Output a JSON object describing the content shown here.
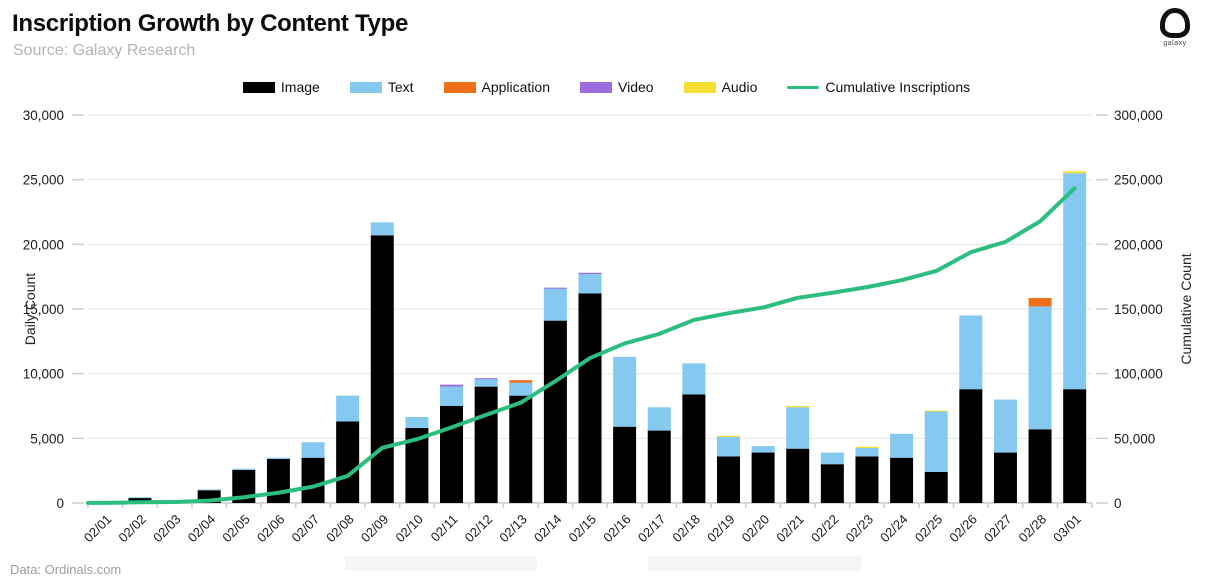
{
  "header": {
    "title": "Inscription Growth by Content Type",
    "subtitle": "Source: Galaxy Research",
    "logo_text": "galaxy"
  },
  "footer": {
    "data_source": "Data: Ordinals.com"
  },
  "chart_data": {
    "type": "bar",
    "stacked": true,
    "title": "Inscription Growth by Content Type",
    "grid": true,
    "legend_position": "top",
    "categories": [
      "02/01",
      "02/02",
      "02/03",
      "02/04",
      "02/05",
      "02/06",
      "02/07",
      "02/08",
      "02/09",
      "02/10",
      "02/11",
      "02/12",
      "02/13",
      "02/14",
      "02/15",
      "02/16",
      "02/17",
      "02/18",
      "02/19",
      "02/20",
      "02/21",
      "02/22",
      "02/23",
      "02/24",
      "02/25",
      "02/26",
      "02/27",
      "02/28",
      "03/01"
    ],
    "series": [
      {
        "name": "Image",
        "color": "#000000",
        "values": [
          100,
          400,
          200,
          1000,
          2550,
          3400,
          3500,
          6300,
          20700,
          5800,
          7500,
          9000,
          8300,
          14100,
          16200,
          5900,
          5600,
          8400,
          3600,
          3900,
          4200,
          3000,
          3600,
          3500,
          2400,
          8800,
          3900,
          5700,
          8800
        ]
      },
      {
        "name": "Text",
        "color": "#85C8F0",
        "values": [
          0,
          50,
          0,
          50,
          100,
          100,
          1200,
          2000,
          1000,
          850,
          1500,
          600,
          1000,
          2500,
          1500,
          5400,
          1800,
          2400,
          1500,
          500,
          3200,
          900,
          650,
          1850,
          4700,
          5700,
          4100,
          9500,
          16700
        ]
      },
      {
        "name": "Application",
        "color": "#F0701A",
        "values": [
          0,
          0,
          0,
          0,
          0,
          0,
          0,
          0,
          0,
          0,
          0,
          0,
          200,
          0,
          0,
          0,
          0,
          0,
          0,
          0,
          0,
          0,
          0,
          0,
          0,
          0,
          0,
          650,
          0
        ]
      },
      {
        "name": "Video",
        "color": "#9B6CE0",
        "values": [
          0,
          0,
          0,
          0,
          0,
          0,
          0,
          0,
          0,
          0,
          150,
          50,
          0,
          50,
          100,
          0,
          0,
          0,
          0,
          0,
          0,
          0,
          0,
          0,
          0,
          0,
          0,
          0,
          0
        ]
      },
      {
        "name": "Audio",
        "color": "#F5DF33",
        "values": [
          0,
          0,
          0,
          0,
          0,
          0,
          0,
          0,
          0,
          0,
          0,
          0,
          0,
          0,
          0,
          0,
          0,
          0,
          100,
          0,
          100,
          0,
          100,
          0,
          50,
          0,
          0,
          0,
          150
        ]
      }
    ],
    "line_series": {
      "name": "Cumulative Inscriptions",
      "color": "#2BBE7E",
      "axis": "right",
      "values": [
        100,
        550,
        750,
        1800,
        4450,
        7950,
        12650,
        20950,
        42650,
        49300,
        58450,
        68100,
        77600,
        94250,
        112050,
        123350,
        130750,
        141550,
        146750,
        151150,
        158650,
        162550,
        166900,
        172250,
        179400,
        193900,
        201900,
        217750,
        243400
      ]
    },
    "left_axis": {
      "label": "Daily Count",
      "min": 0,
      "max": 30000,
      "tick_step": 5000
    },
    "right_axis": {
      "label": "Cumulative Count",
      "min": 0,
      "max": 300000,
      "tick_step": 50000
    }
  }
}
